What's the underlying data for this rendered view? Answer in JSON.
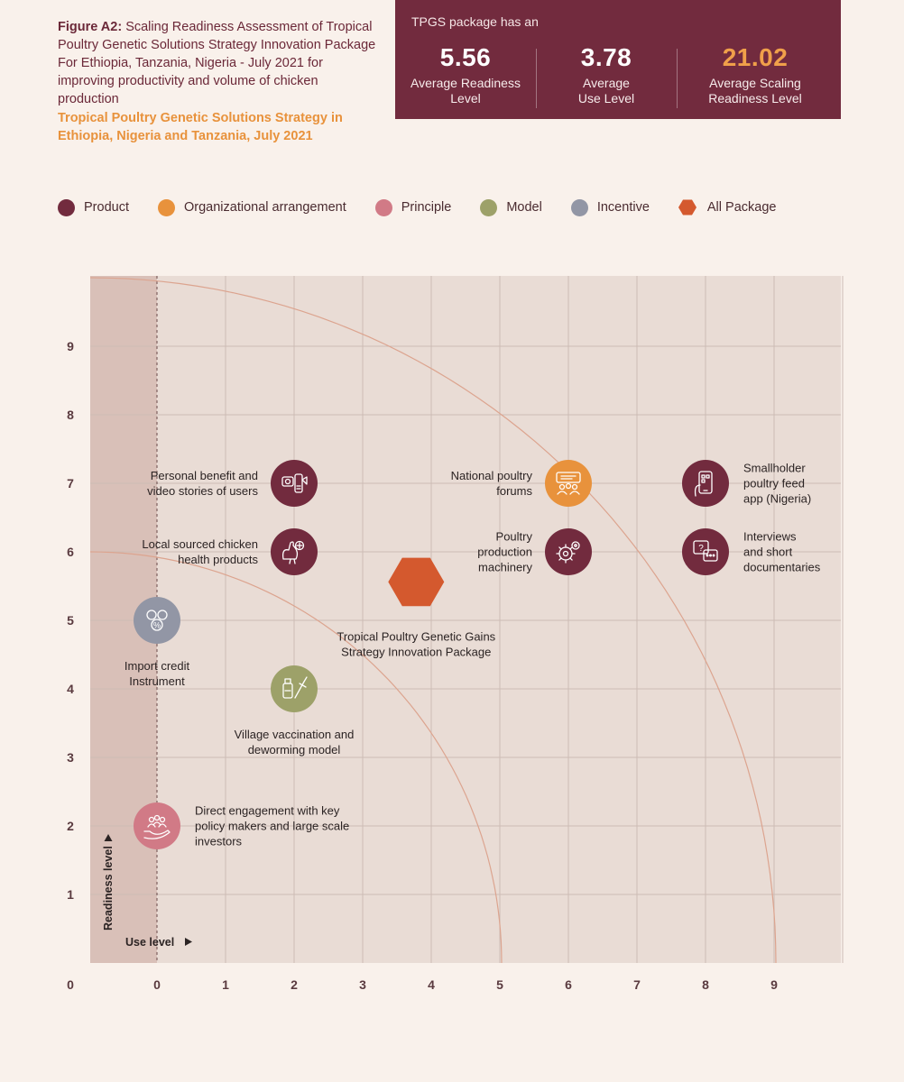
{
  "figure": {
    "caption_bold": "Figure A2:",
    "caption_text": " Scaling Readiness Assessment of Tropical Poultry Genetic Solutions Strategy Innovation Package For Ethiopia, Tanzania, Nigeria - July 2021 for improving productivity and volume of chicken production",
    "subtitle": "Tropical Poultry Genetic Solutions Strategy in Ethiopia, Nigeria and Tanzania, July 2021"
  },
  "stats": {
    "header": "TPGS package has an",
    "items": [
      {
        "value": "5.56",
        "label_line1": "Average Readiness",
        "label_line2": "Level"
      },
      {
        "value": "3.78",
        "label_line1": "Average",
        "label_line2": "Use Level"
      },
      {
        "value": "21.02",
        "label_line1": "Average Scaling",
        "label_line2": "Readiness Level"
      }
    ]
  },
  "legend": [
    {
      "label": "Product",
      "color": "#722b3e",
      "shape": "circle"
    },
    {
      "label": "Organizational arrangement",
      "color": "#e8923c",
      "shape": "circle"
    },
    {
      "label": "Principle",
      "color": "#d17a86",
      "shape": "circle"
    },
    {
      "label": "Model",
      "color": "#9da169",
      "shape": "circle"
    },
    {
      "label": "Incentive",
      "color": "#9296a5",
      "shape": "circle"
    },
    {
      "label": "All Package",
      "color": "#d4592e",
      "shape": "hexagon"
    }
  ],
  "chart_data": {
    "type": "scatter",
    "xlabel": "Use level",
    "ylabel": "Readiness level",
    "xlim": [
      -1,
      10
    ],
    "ylim": [
      0,
      10
    ],
    "x_ticks": [
      "0",
      "1",
      "2",
      "3",
      "4",
      "5",
      "6",
      "7",
      "8",
      "9"
    ],
    "y_ticks": [
      "1",
      "2",
      "3",
      "4",
      "5",
      "6",
      "7",
      "8",
      "9"
    ],
    "origin_label": "0",
    "grid": true,
    "legend_position": "top",
    "curves": [
      {
        "type": "iso-scaling-readiness",
        "x_intercept": 6,
        "y_intercept": 6
      },
      {
        "type": "iso-scaling-readiness",
        "x_intercept": 10,
        "y_intercept": 10
      }
    ],
    "points": [
      {
        "label_lines": [
          "Personal benefit and",
          "video stories of users"
        ],
        "category": "Product",
        "x": 2,
        "y": 7,
        "icon": "video-stories-icon",
        "label_side": "left"
      },
      {
        "label_lines": [
          "Local sourced chicken",
          "health products"
        ],
        "category": "Product",
        "x": 2,
        "y": 6,
        "icon": "chicken-health-icon",
        "label_side": "left"
      },
      {
        "label_lines": [
          "National poultry",
          "forums"
        ],
        "category": "Organizational arrangement",
        "x": 6,
        "y": 7,
        "icon": "forum-icon",
        "label_side": "left"
      },
      {
        "label_lines": [
          "Poultry",
          "production",
          "machinery"
        ],
        "category": "Product",
        "x": 6,
        "y": 6,
        "icon": "gears-icon",
        "label_side": "left"
      },
      {
        "label_lines": [
          "Smallholder",
          "poultry feed",
          "app (Nigeria)"
        ],
        "category": "Product",
        "x": 8,
        "y": 7,
        "icon": "mobile-app-icon",
        "label_side": "right"
      },
      {
        "label_lines": [
          "Interviews",
          "and short",
          "documentaries"
        ],
        "category": "Product",
        "x": 8,
        "y": 6,
        "icon": "chat-icon",
        "label_side": "right"
      },
      {
        "label_lines": [
          "Import credit",
          "Instrument"
        ],
        "category": "Incentive",
        "x": 0,
        "y": 5,
        "icon": "coins-icon",
        "label_side": "below"
      },
      {
        "label_lines": [
          "Village vaccination and",
          "deworming model"
        ],
        "category": "Model",
        "x": 2,
        "y": 4,
        "icon": "vaccine-icon",
        "label_side": "below"
      },
      {
        "label_lines": [
          "Direct engagement with key",
          "policy makers and large scale",
          "investors"
        ],
        "category": "Principle",
        "x": 0,
        "y": 2,
        "icon": "people-hand-icon",
        "label_side": "right"
      },
      {
        "label_lines": [
          "Tropical Poultry Genetic Gains",
          "Strategy Innovation Package"
        ],
        "category": "All Package",
        "x": 3.78,
        "y": 5.56,
        "icon": "",
        "label_side": "below"
      }
    ]
  }
}
